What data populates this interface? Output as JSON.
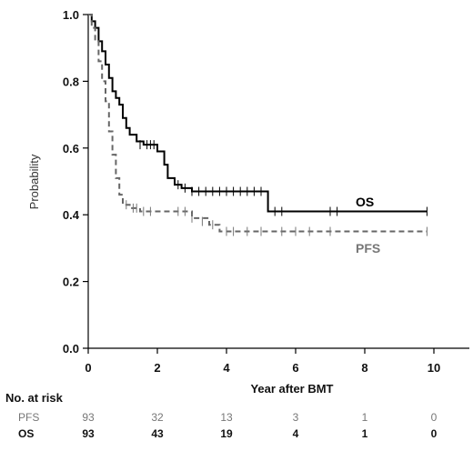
{
  "chart_data": {
    "type": "line",
    "subtype": "kaplan-meier",
    "title": "",
    "xlabel": "Year after BMT",
    "ylabel": "Probability",
    "xlim": [
      0,
      10
    ],
    "ylim": [
      0.0,
      1.0
    ],
    "xticks": [
      0,
      2,
      4,
      6,
      8,
      10
    ],
    "yticks": [
      0.0,
      0.2,
      0.4,
      0.6,
      0.8,
      1.0
    ],
    "ytick_labels": [
      "0.0",
      "0.2",
      "0.4",
      "0.6",
      "0.8",
      "1.0"
    ],
    "grid": false,
    "legend": "inline labels at right end of curves",
    "series": [
      {
        "name": "OS",
        "color": "#000000",
        "style": "solid",
        "steps": [
          [
            0,
            1.0
          ],
          [
            0.1,
            0.98
          ],
          [
            0.2,
            0.96
          ],
          [
            0.3,
            0.92
          ],
          [
            0.4,
            0.89
          ],
          [
            0.5,
            0.85
          ],
          [
            0.6,
            0.81
          ],
          [
            0.7,
            0.77
          ],
          [
            0.8,
            0.75
          ],
          [
            0.9,
            0.73
          ],
          [
            1.0,
            0.69
          ],
          [
            1.1,
            0.66
          ],
          [
            1.2,
            0.64
          ],
          [
            1.4,
            0.62
          ],
          [
            1.6,
            0.61
          ],
          [
            2.0,
            0.59
          ],
          [
            2.2,
            0.55
          ],
          [
            2.3,
            0.51
          ],
          [
            2.5,
            0.49
          ],
          [
            2.7,
            0.48
          ],
          [
            3.0,
            0.47
          ],
          [
            5.2,
            0.41
          ],
          [
            9.8,
            0.41
          ]
        ],
        "censored": [
          [
            1.5,
            0.61
          ],
          [
            1.7,
            0.61
          ],
          [
            1.8,
            0.61
          ],
          [
            1.9,
            0.61
          ],
          [
            2.6,
            0.49
          ],
          [
            2.8,
            0.48
          ],
          [
            3.0,
            0.47
          ],
          [
            3.2,
            0.47
          ],
          [
            3.4,
            0.47
          ],
          [
            3.6,
            0.47
          ],
          [
            3.8,
            0.47
          ],
          [
            4.0,
            0.47
          ],
          [
            4.2,
            0.47
          ],
          [
            4.4,
            0.47
          ],
          [
            4.6,
            0.47
          ],
          [
            4.8,
            0.47
          ],
          [
            5.0,
            0.47
          ],
          [
            5.4,
            0.41
          ],
          [
            5.6,
            0.41
          ],
          [
            7.0,
            0.41
          ],
          [
            7.2,
            0.41
          ],
          [
            9.8,
            0.41
          ]
        ]
      },
      {
        "name": "PFS",
        "color": "#666666",
        "style": "dashed",
        "steps": [
          [
            0,
            1.0
          ],
          [
            0.1,
            0.96
          ],
          [
            0.2,
            0.92
          ],
          [
            0.3,
            0.86
          ],
          [
            0.4,
            0.8
          ],
          [
            0.5,
            0.74
          ],
          [
            0.6,
            0.65
          ],
          [
            0.7,
            0.58
          ],
          [
            0.8,
            0.51
          ],
          [
            0.9,
            0.46
          ],
          [
            1.0,
            0.43
          ],
          [
            1.2,
            0.42
          ],
          [
            1.5,
            0.41
          ],
          [
            2.0,
            0.41
          ],
          [
            3.0,
            0.39
          ],
          [
            3.5,
            0.37
          ],
          [
            3.8,
            0.35
          ],
          [
            9.8,
            0.35
          ]
        ],
        "censored": [
          [
            1.1,
            0.43
          ],
          [
            1.3,
            0.42
          ],
          [
            1.4,
            0.42
          ],
          [
            1.6,
            0.41
          ],
          [
            1.8,
            0.41
          ],
          [
            2.6,
            0.41
          ],
          [
            2.8,
            0.41
          ],
          [
            3.0,
            0.39
          ],
          [
            3.3,
            0.38
          ],
          [
            3.6,
            0.37
          ],
          [
            4.0,
            0.35
          ],
          [
            4.2,
            0.35
          ],
          [
            4.6,
            0.35
          ],
          [
            5.0,
            0.35
          ],
          [
            5.6,
            0.35
          ],
          [
            6.0,
            0.35
          ],
          [
            6.4,
            0.35
          ],
          [
            7.0,
            0.35
          ],
          [
            9.8,
            0.35
          ]
        ]
      }
    ],
    "annotations": [
      {
        "text": "OS",
        "x": 7.8,
        "y": 0.435
      },
      {
        "text": "PFS",
        "x": 7.8,
        "y": 0.295
      }
    ],
    "risk_table": {
      "title": "No. at risk",
      "time_points": [
        0,
        2,
        4,
        6,
        8,
        10
      ],
      "rows": [
        {
          "name": "PFS",
          "values": [
            "93",
            "32",
            "13",
            "3",
            "1",
            "0"
          ]
        },
        {
          "name": "OS",
          "values": [
            "93",
            "43",
            "19",
            "4",
            "1",
            "0"
          ]
        }
      ]
    }
  }
}
